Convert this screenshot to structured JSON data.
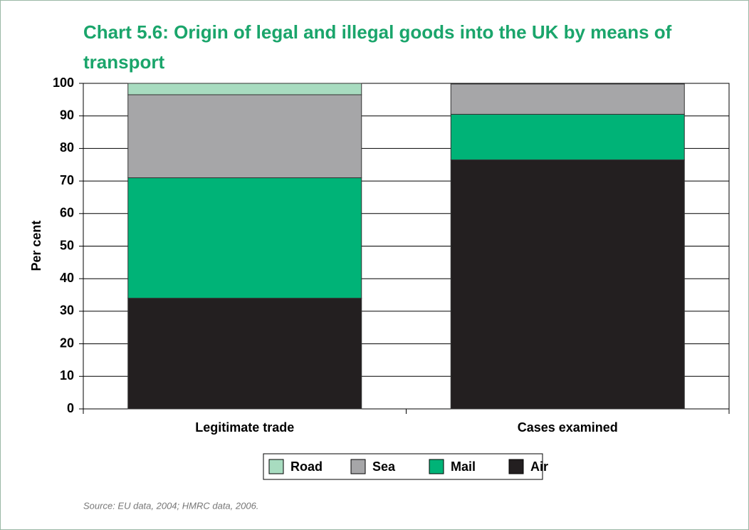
{
  "chart_data": {
    "type": "stacked_bar",
    "title": "Chart 5.6: Origin of legal and illegal goods into the UK by means of transport",
    "ylabel": "Per cent",
    "categories": [
      "Legitimate trade",
      "Cases examined"
    ],
    "series": [
      {
        "name": "Air",
        "color": "#231f20",
        "values": [
          34,
          76.5
        ]
      },
      {
        "name": "Mail",
        "color": "#00b377",
        "values": [
          37,
          14
        ]
      },
      {
        "name": "Sea",
        "color": "#a6a6a8",
        "values": [
          25.5,
          9.3
        ]
      },
      {
        "name": "Road",
        "color": "#a8dcc0",
        "values": [
          3.5,
          0
        ]
      }
    ],
    "ylim": [
      0,
      100
    ],
    "yticks": [
      0,
      10,
      20,
      30,
      40,
      50,
      60,
      70,
      80,
      90,
      100
    ],
    "grid": true,
    "source": "Source: EU data, 2004; HMRC data, 2006."
  }
}
